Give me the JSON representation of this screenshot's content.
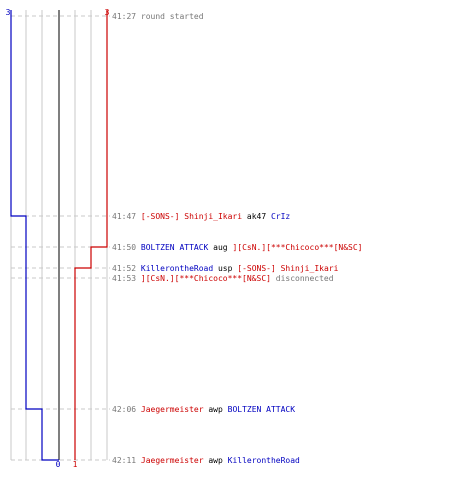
{
  "colors": {
    "blue": "#0000c0",
    "red": "#cc0000",
    "black": "#000000",
    "time": "#777777",
    "system": "#777777",
    "grid": "#c8c8c8",
    "guide": "#c8c8c8",
    "center": "#555555"
  },
  "chart_data": {
    "type": "line",
    "title": "",
    "xlabel": "",
    "ylabel": "",
    "start_count": {
      "blue": "3",
      "red": "3"
    },
    "end_count": {
      "blue": "0",
      "red": "1"
    },
    "series": [
      {
        "color": "blue",
        "values": [
          3,
          2,
          2,
          2,
          2,
          1,
          0
        ]
      },
      {
        "color": "red",
        "values": [
          3,
          3,
          2,
          1,
          1,
          1,
          1
        ]
      }
    ],
    "grid_columns": [
      0,
      1,
      2,
      3,
      4,
      5,
      6
    ]
  },
  "events": [
    {
      "time": "41:27",
      "parts": [
        {
          "text": "round started",
          "style": "system"
        }
      ]
    },
    {
      "time": "41:47",
      "parts": [
        {
          "text": "[-SONS-] Shinji_Ikari",
          "style": "red"
        },
        {
          "text": " ak47 ",
          "style": "black"
        },
        {
          "text": "CrIz",
          "style": "blue"
        }
      ]
    },
    {
      "time": "41:50",
      "parts": [
        {
          "text": "BOLTZEN ATTACK",
          "style": "blue"
        },
        {
          "text": " aug ",
          "style": "black"
        },
        {
          "text": "][CsN.][***Chicoco***[N&SC]",
          "style": "red"
        }
      ]
    },
    {
      "time": "41:52",
      "parts": [
        {
          "text": "KillerontheRoad",
          "style": "blue"
        },
        {
          "text": " usp ",
          "style": "black"
        },
        {
          "text": "[-SONS-] Shinji_Ikari",
          "style": "red"
        }
      ]
    },
    {
      "time": "41:53",
      "parts": [
        {
          "text": "][CsN.][***Chicoco***[N&SC]",
          "style": "red"
        },
        {
          "text": " disconnected",
          "style": "system"
        }
      ]
    },
    {
      "time": "42:06",
      "parts": [
        {
          "text": "Jaegermeister",
          "style": "red"
        },
        {
          "text": " awp ",
          "style": "black"
        },
        {
          "text": "BOLTZEN ATTACK",
          "style": "blue"
        }
      ]
    },
    {
      "time": "42:11",
      "parts": [
        {
          "text": "Jaegermeister",
          "style": "red"
        },
        {
          "text": " awp ",
          "style": "black"
        },
        {
          "text": "KillerontheRoad",
          "style": "blue"
        }
      ]
    }
  ]
}
